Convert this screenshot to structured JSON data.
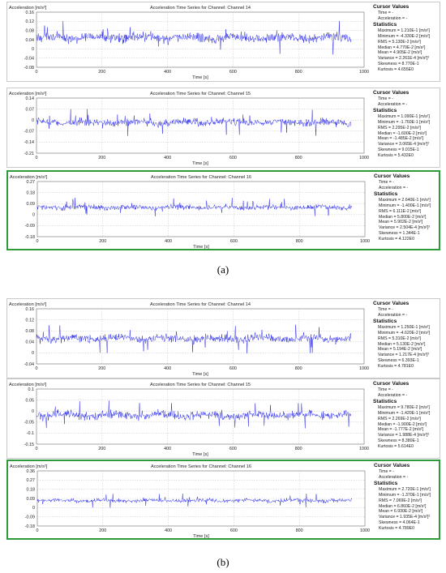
{
  "captions": [
    "(a)",
    "(b)"
  ],
  "common": {
    "ylabel": "Acceleration [m/s²]",
    "xlabel": "Time [s]",
    "cursor_title": "Cursor Values",
    "time_label": "Time = -",
    "accel_label": "Acceleration = -",
    "stats_title": "Statistics"
  },
  "chart_data": [
    {
      "type": "line",
      "group": "a",
      "title": "Acceleration Time Series for Channel: Channel 14",
      "xlabel": "Time [s]",
      "ylabel": "Acceleration [m/s²]",
      "xlim": [
        0,
        1000
      ],
      "ylim": [
        -0.08,
        0.16
      ],
      "data_x_max": 960,
      "yticks": [
        "0.16",
        "0.12",
        "0.08",
        "0.04",
        "0",
        "-0.04",
        "-0.08"
      ],
      "xticks": [
        "0",
        "200",
        "400",
        "600",
        "800",
        "1000"
      ],
      "grid": true,
      "selected": false,
      "stats": [
        "Maximum = 1.210E-1 [m/s²]",
        "Minimum = -4.330E-2 [m/s²]",
        "RMS = 5.130E-2 [m/s²]",
        "Median = 4.770E-2 [m/s²]",
        "Mean = 4.905E-2 [m/s²]",
        "Variance = 2.261E-4 [m/s²]²",
        "Skewness = 8.770E-1",
        "Kurtosis = 4.655E0"
      ]
    },
    {
      "type": "line",
      "group": "a",
      "title": "Acceleration Time Series for Channel: Channel 15",
      "xlabel": "Time [s]",
      "ylabel": "Acceleration [m/s²]",
      "xlim": [
        0,
        1000
      ],
      "ylim": [
        -0.21,
        0.14
      ],
      "data_x_max": 960,
      "yticks": [
        "0.14",
        "0.07",
        "0",
        "-0.07",
        "-0.14",
        "-0.21"
      ],
      "xticks": [
        "0",
        "200",
        "400",
        "600",
        "800",
        "1000"
      ],
      "grid": true,
      "selected": false,
      "stats": [
        "Maximum = 1.090E-1 [m/s²]",
        "Minimum = -1.760E-1 [m/s²]",
        "RMS = 2.295E-2 [m/s²]",
        "Median = -1.600E-2 [m/s²]",
        "Mean = -1.485E-2 [m/s²]",
        "Variance = 3.065E-4 [m/s²]²",
        "Skewness = 9.015E-1",
        "Kurtosis = 5.432E0"
      ]
    },
    {
      "type": "line",
      "group": "a",
      "title": "Acceleration Time Series for Channel: Channel 16",
      "xlabel": "Time [s]",
      "ylabel": "Acceleration [m/s²]",
      "xlim": [
        0,
        1000
      ],
      "ylim": [
        -0.18,
        0.27
      ],
      "data_x_max": 960,
      "yticks": [
        "0.27",
        "0.18",
        "0.09",
        "0",
        "-0.09",
        "-0.18"
      ],
      "xticks": [
        "0",
        "200",
        "400",
        "600",
        "800",
        "1000"
      ],
      "grid": true,
      "selected": true,
      "stats": [
        "Maximum = 2.640E-1 [m/s²]",
        "Minimum = -1.400E-1 [m/s²]",
        "RMS = 6.111E-2 [m/s²]",
        "Median = 5.800E-2 [m/s²]",
        "Mean = 5.902E-2 [m/s²]",
        "Variance = 2.504E-4 [m/s²]²",
        "Skewness = 1.344E-1",
        "Kurtosis = 4.122E0"
      ]
    },
    {
      "type": "line",
      "group": "b",
      "title": "Acceleration Time Series for Channel: Channel 14",
      "xlabel": "Time [s]",
      "ylabel": "Acceleration [m/s²]",
      "xlim": [
        0,
        1000
      ],
      "ylim": [
        -0.04,
        0.16
      ],
      "data_x_max": 960,
      "yticks": [
        "0.16",
        "0.12",
        "0.08",
        "0.04",
        "0",
        "-0.04"
      ],
      "xticks": [
        "0",
        "200",
        "400",
        "600",
        "800",
        "1000"
      ],
      "grid": true,
      "selected": false,
      "stats": [
        "Maximum = 1.250E-1 [m/s²]",
        "Minimum = -4.620E-2 [m/s²]",
        "RMS = 5.310E-2 [m/s²]",
        "Median = 5.130E-2 [m/s²]",
        "Mean = 5.194E-2 [m/s²]",
        "Variance = 1.217E-4 [m/s²]²",
        "Skewness = 6.393E-1",
        "Kurtosis = 4.781E0"
      ]
    },
    {
      "type": "line",
      "group": "b",
      "title": "Acceleration Time Series for Channel: Channel 15",
      "xlabel": "Time [s]",
      "ylabel": "Acceleration [m/s²]",
      "xlim": [
        0,
        1000
      ],
      "ylim": [
        -0.15,
        0.1
      ],
      "data_x_max": 960,
      "yticks": [
        "0.1",
        "0.05",
        "0",
        "-0.05",
        "-0.1",
        "-0.15"
      ],
      "xticks": [
        "0",
        "200",
        "400",
        "600",
        "800",
        "1000"
      ],
      "grid": true,
      "selected": false,
      "stats": [
        "Maximum = 9.780E-2 [m/s²]",
        "Minimum = -1.420E-1 [m/s²]",
        "RMS = 2.269E-2 [m/s²]",
        "Median = -1.900E-2 [m/s²]",
        "Mean = -1.777E-2 [m/s²]",
        "Variance = 1.988E-4 [m/s²]²",
        "Skewness = 8.380E-1",
        "Kurtosis = 5.614E0"
      ]
    },
    {
      "type": "line",
      "group": "b",
      "title": "Acceleration Time Series for Channel: Channel 16",
      "xlabel": "Time [s]",
      "ylabel": "Acceleration [m/s²]",
      "xlim": [
        0,
        1000
      ],
      "ylim": [
        -0.18,
        0.36
      ],
      "data_x_max": 960,
      "yticks": [
        "0.36",
        "0.27",
        "0.18",
        "0.09",
        "0",
        "-0.09",
        "-0.18"
      ],
      "xticks": [
        "0",
        "200",
        "400",
        "600",
        "800",
        "1000"
      ],
      "grid": true,
      "selected": true,
      "stats": [
        "Maximum = 2.720E-1 [m/s²]",
        "Minimum = -1.370E-1 [m/s²]",
        "RMS = 7.069E-2 [m/s²]",
        "Median = 6.860E-2 [m/s²]",
        "Mean = 6.930E-2 [m/s²]",
        "Variance = 1.935E-4 [m/s²]²",
        "Skewness = 4.064E-1",
        "Kurtosis = 4.789E0"
      ]
    }
  ]
}
